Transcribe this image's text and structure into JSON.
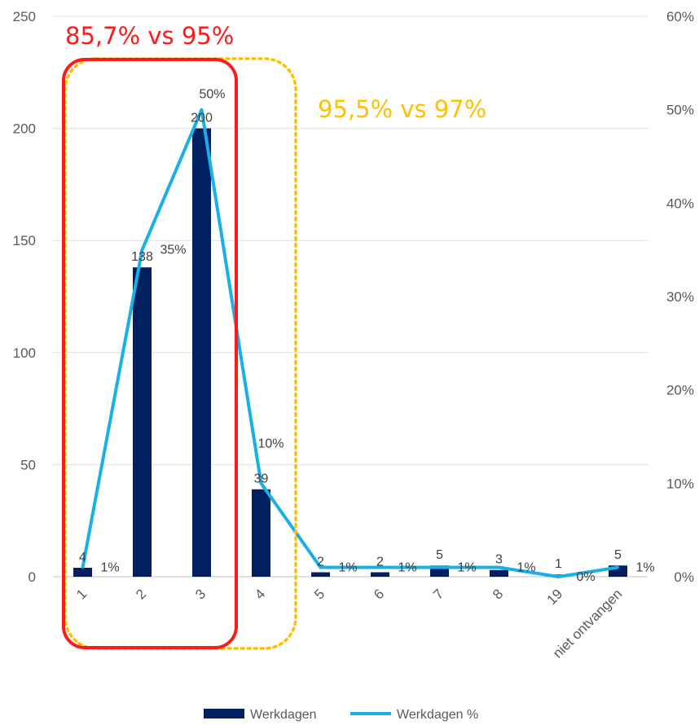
{
  "chart_data": {
    "type": "bar+line",
    "title": "",
    "categories": [
      "1",
      "2",
      "3",
      "4",
      "5",
      "6",
      "7",
      "8",
      "19",
      "niet ontvangen"
    ],
    "series": [
      {
        "name": "Werkdagen",
        "type": "bar",
        "axis": "left",
        "color": "#002060",
        "values": [
          4,
          138,
          200,
          39,
          2,
          2,
          5,
          3,
          1,
          5
        ],
        "labels": [
          "4",
          "138",
          "200",
          "39",
          "2",
          "2",
          "5",
          "3",
          "1",
          "5"
        ]
      },
      {
        "name": "Werkdagen %",
        "type": "line",
        "axis": "right",
        "color": "#1aafe6",
        "values": [
          1,
          35,
          50,
          10,
          1,
          1,
          1,
          1,
          0,
          1
        ],
        "labels": [
          "1%",
          "35%",
          "50%",
          "10%",
          "1%",
          "1%",
          "1%",
          "1%",
          "0%",
          "1%"
        ]
      }
    ],
    "y_left": {
      "min": 0,
      "max": 250,
      "ticks": [
        "0",
        "50",
        "100",
        "150",
        "200",
        "250"
      ]
    },
    "y_right": {
      "min": 0,
      "max": 60,
      "ticks": [
        "0%",
        "10%",
        "20%",
        "30%",
        "40%",
        "50%",
        "60%"
      ]
    },
    "grid": true,
    "legend": "bottom",
    "annotations": [
      {
        "text": "85,7% vs 95%",
        "color": "#ff1a1a",
        "groups": [
          "1",
          "2",
          "3"
        ]
      },
      {
        "text": "95,5% vs 97%",
        "color": "#ffc000",
        "groups": [
          "1",
          "2",
          "3",
          "4"
        ]
      }
    ]
  }
}
